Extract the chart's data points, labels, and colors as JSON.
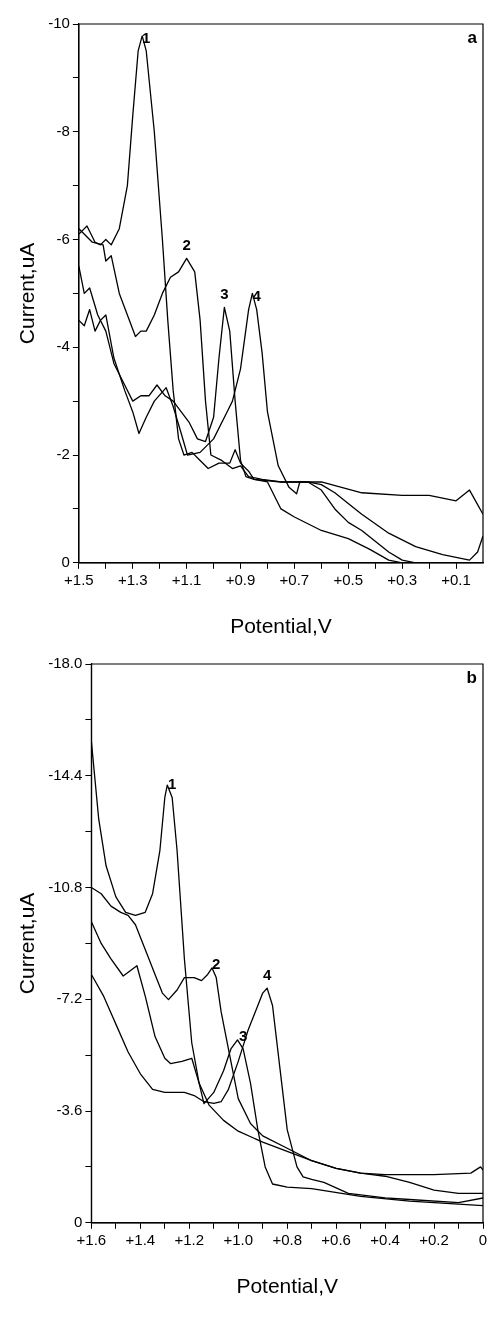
{
  "chart_data": [
    {
      "type": "line",
      "xlabel": "Potential,V",
      "ylabel": "Current,uA",
      "annotations": [
        "a"
      ],
      "xlim": [
        1.5,
        0
      ],
      "ylim": [
        0,
        -10
      ],
      "xticks": [
        {
          "value": 1.5,
          "label": "+1.5"
        },
        {
          "value": 1.4,
          "label": null
        },
        {
          "value": 1.3,
          "label": "+1.3"
        },
        {
          "value": 1.2,
          "label": null
        },
        {
          "value": 1.1,
          "label": "+1.1"
        },
        {
          "value": 1.0,
          "label": null
        },
        {
          "value": 0.9,
          "label": "+0.9"
        },
        {
          "value": 0.8,
          "label": null
        },
        {
          "value": 0.7,
          "label": "+0.7"
        },
        {
          "value": 0.6,
          "label": null
        },
        {
          "value": 0.5,
          "label": "+0.5"
        },
        {
          "value": 0.4,
          "label": null
        },
        {
          "value": 0.3,
          "label": "+0.3"
        },
        {
          "value": 0.2,
          "label": null
        },
        {
          "value": 0.1,
          "label": "+0.1"
        }
      ],
      "yticks": [
        -10,
        {
          "value": -9,
          "label": null
        },
        -8,
        {
          "value": -7,
          "label": null
        },
        -6,
        {
          "value": -5,
          "label": null
        },
        -4,
        {
          "value": -3,
          "label": null
        },
        -2,
        {
          "value": -1,
          "label": null
        },
        0
      ],
      "series": [
        {
          "name": "1",
          "color": "#000000",
          "x": [
            1.5,
            1.47,
            1.44,
            1.42,
            1.4,
            1.38,
            1.35,
            1.32,
            1.3,
            1.28,
            1.265,
            1.25,
            1.22,
            1.19,
            1.17,
            1.15,
            1.13,
            1.11,
            1.08,
            1.05,
            1.02,
            0.98,
            0.94,
            0.92,
            0.9,
            0.87,
            0.85,
            0.8,
            0.75,
            0.7,
            0.6,
            0.5,
            0.42,
            0.35,
            0.3,
            0.15,
            0
          ],
          "values": [
            -6.1,
            -6.25,
            -5.95,
            -5.9,
            -6.0,
            -5.9,
            -6.2,
            -7.0,
            -8.3,
            -9.5,
            -9.78,
            -9.5,
            -8.0,
            -6.0,
            -4.5,
            -3.2,
            -2.3,
            -2.0,
            -2.05,
            -1.9,
            -1.75,
            -1.85,
            -1.85,
            -2.1,
            -1.85,
            -1.7,
            -1.55,
            -1.5,
            -1.0,
            -0.85,
            -0.6,
            -0.45,
            -0.25,
            -0.05,
            0,
            0,
            0
          ]
        },
        {
          "name": "2",
          "color": "#000000",
          "x": [
            1.5,
            1.45,
            1.41,
            1.4,
            1.38,
            1.35,
            1.32,
            1.29,
            1.27,
            1.25,
            1.22,
            1.19,
            1.16,
            1.13,
            1.1,
            1.07,
            1.05,
            1.03,
            1.01,
            0.97,
            0.93,
            0.9,
            0.87,
            0.82,
            0.75,
            0.65,
            0.6,
            0.55,
            0.5,
            0.45,
            0.4,
            0.35,
            0.3,
            0.25,
            0
          ],
          "values": [
            -6.2,
            -5.95,
            -5.9,
            -5.6,
            -5.7,
            -5.0,
            -4.6,
            -4.2,
            -4.3,
            -4.3,
            -4.6,
            -5.0,
            -5.3,
            -5.4,
            -5.65,
            -5.4,
            -4.5,
            -3.0,
            -2.0,
            -1.9,
            -1.75,
            -1.8,
            -1.6,
            -1.55,
            -1.5,
            -1.5,
            -1.35,
            -1.0,
            -0.75,
            -0.6,
            -0.4,
            -0.2,
            -0.05,
            0,
            0
          ]
        },
        {
          "name": "3",
          "color": "#000000",
          "x": [
            1.5,
            1.48,
            1.46,
            1.43,
            1.4,
            1.37,
            1.33,
            1.3,
            1.27,
            1.24,
            1.21,
            1.18,
            1.15,
            1.12,
            1.09,
            1.06,
            1.03,
            1.0,
            0.98,
            0.96,
            0.94,
            0.92,
            0.9,
            0.88,
            0.85,
            0.75,
            0.65,
            0.6,
            0.55,
            0.45,
            0.35,
            0.25,
            0.15,
            0.05,
            0.02,
            0
          ],
          "values": [
            -5.5,
            -5.0,
            -5.1,
            -4.6,
            -4.3,
            -3.7,
            -3.3,
            -3.0,
            -3.1,
            -3.1,
            -3.3,
            -3.1,
            -3.0,
            -2.8,
            -2.6,
            -2.3,
            -2.25,
            -2.7,
            -3.8,
            -4.74,
            -4.3,
            -3.0,
            -1.9,
            -1.6,
            -1.55,
            -1.5,
            -1.5,
            -1.45,
            -1.3,
            -0.9,
            -0.55,
            -0.3,
            -0.15,
            -0.05,
            -0.2,
            -0.5
          ]
        },
        {
          "name": "4",
          "color": "#000000",
          "x": [
            1.5,
            1.48,
            1.46,
            1.44,
            1.42,
            1.4,
            1.37,
            1.33,
            1.3,
            1.277,
            1.25,
            1.22,
            1.176,
            1.15,
            1.12,
            1.097,
            1.05,
            1.0,
            0.95,
            0.93,
            0.9,
            0.87,
            0.856,
            0.84,
            0.82,
            0.8,
            0.76,
            0.72,
            0.692,
            0.68,
            0.6,
            0.45,
            0.3,
            0.2,
            0.1,
            0.05,
            0
          ],
          "values": [
            -4.5,
            -4.4,
            -4.7,
            -4.3,
            -4.5,
            -4.6,
            -3.8,
            -3.2,
            -2.8,
            -2.4,
            -2.7,
            -3.0,
            -3.25,
            -2.9,
            -2.4,
            -2.0,
            -2.05,
            -2.3,
            -2.8,
            -3.0,
            -3.6,
            -4.7,
            -5.0,
            -4.7,
            -3.9,
            -2.8,
            -1.8,
            -1.4,
            -1.28,
            -1.5,
            -1.5,
            -1.3,
            -1.25,
            -1.25,
            -1.15,
            -1.35,
            -0.9
          ]
        }
      ]
    },
    {
      "type": "line",
      "xlabel": "Potential,V",
      "ylabel": "Current,uA",
      "annotations": [
        "b"
      ],
      "xlim": [
        1.6,
        0
      ],
      "ylim": [
        0,
        -18
      ],
      "xticks": [
        {
          "value": 1.6,
          "label": "+1.6"
        },
        {
          "value": 1.5,
          "label": null
        },
        {
          "value": 1.4,
          "label": "+1.4"
        },
        {
          "value": 1.3,
          "label": null
        },
        {
          "value": 1.2,
          "label": "+1.2"
        },
        {
          "value": 1.1,
          "label": null
        },
        {
          "value": 1.0,
          "label": "+1.0"
        },
        {
          "value": 0.9,
          "label": null
        },
        {
          "value": 0.8,
          "label": "+0.8"
        },
        {
          "value": 0.7,
          "label": null
        },
        {
          "value": 0.6,
          "label": "+0.6"
        },
        {
          "value": 0.5,
          "label": null
        },
        {
          "value": 0.4,
          "label": "+0.4"
        },
        {
          "value": 0.3,
          "label": null
        },
        {
          "value": 0.2,
          "label": "+0.2"
        },
        {
          "value": 0.1,
          "label": null
        },
        0
      ],
      "yticks": [
        {
          "value": -18,
          "label": "-18.0"
        },
        {
          "value": -16.2,
          "label": null
        },
        -14.4,
        {
          "value": -12.6,
          "label": null
        },
        -10.8,
        {
          "value": -9,
          "label": null
        },
        -7.2,
        {
          "value": -5.4,
          "label": null
        },
        -3.6,
        {
          "value": -1.8,
          "label": null
        },
        0
      ],
      "series": [
        {
          "name": "1",
          "color": "#000000",
          "x": [
            1.6,
            1.57,
            1.54,
            1.5,
            1.46,
            1.42,
            1.38,
            1.35,
            1.32,
            1.3,
            1.29,
            1.27,
            1.25,
            1.22,
            1.19,
            1.16,
            1.12,
            1.06,
            1.0,
            0.9,
            0.8,
            0.7,
            0.6,
            0.5,
            0.4,
            0.3,
            0.2,
            0.1,
            0
          ],
          "values": [
            -15.5,
            -13.0,
            -11.5,
            -10.5,
            -10.0,
            -9.9,
            -10.0,
            -10.6,
            -12.0,
            -13.7,
            -14.1,
            -13.7,
            -12.0,
            -8.5,
            -5.8,
            -4.5,
            -3.8,
            -3.3,
            -2.95,
            -2.6,
            -2.3,
            -2.0,
            -1.75,
            -1.6,
            -1.5,
            -1.3,
            -1.05,
            -0.95,
            -0.95
          ]
        },
        {
          "name": "2",
          "color": "#000000",
          "x": [
            1.6,
            1.56,
            1.52,
            1.48,
            1.45,
            1.42,
            1.38,
            1.34,
            1.31,
            1.285,
            1.25,
            1.22,
            1.18,
            1.15,
            1.125,
            1.107,
            1.09,
            1.07,
            1.05,
            1.0,
            0.95,
            0.9,
            0.8,
            0.7,
            0.6,
            0.5,
            0.4,
            0.2,
            0.05,
            0.01,
            0
          ],
          "values": [
            -10.8,
            -10.6,
            -10.2,
            -10.0,
            -9.9,
            -9.6,
            -8.8,
            -8.0,
            -7.4,
            -7.19,
            -7.5,
            -7.9,
            -7.9,
            -7.8,
            -8.0,
            -8.21,
            -7.9,
            -6.8,
            -6.0,
            -4.0,
            -3.2,
            -2.8,
            -2.4,
            -2.0,
            -1.75,
            -1.6,
            -1.55,
            -1.55,
            -1.6,
            -1.8,
            -1.7
          ]
        },
        {
          "name": "3",
          "color": "#000000",
          "x": [
            1.6,
            1.56,
            1.52,
            1.47,
            1.414,
            1.38,
            1.34,
            1.3,
            1.277,
            1.23,
            1.19,
            1.16,
            1.14,
            1.1,
            1.06,
            1.03,
            1.003,
            0.98,
            0.95,
            0.92,
            0.89,
            0.86,
            0.8,
            0.7,
            0.5,
            0.3,
            0.1,
            0
          ],
          "values": [
            -9.7,
            -9.0,
            -8.5,
            -7.95,
            -8.28,
            -7.3,
            -6.0,
            -5.3,
            -5.13,
            -5.2,
            -5.3,
            -4.5,
            -3.84,
            -4.2,
            -4.9,
            -5.6,
            -5.89,
            -5.6,
            -4.5,
            -3.0,
            -1.8,
            -1.25,
            -1.15,
            -1.1,
            -0.85,
            -0.7,
            -0.6,
            -0.55
          ]
        },
        {
          "name": "4",
          "color": "#000000",
          "x": [
            1.6,
            1.55,
            1.5,
            1.45,
            1.4,
            1.35,
            1.3,
            1.25,
            1.22,
            1.18,
            1.14,
            1.1,
            1.07,
            1.04,
            1.0,
            0.96,
            0.92,
            0.9,
            0.882,
            0.86,
            0.83,
            0.8,
            0.76,
            0.735,
            0.7,
            0.65,
            0.55,
            0.4,
            0.3,
            0.1,
            0
          ],
          "values": [
            -8.0,
            -7.3,
            -6.4,
            -5.5,
            -4.8,
            -4.3,
            -4.2,
            -4.2,
            -4.2,
            -4.1,
            -3.9,
            -3.85,
            -3.9,
            -4.3,
            -5.2,
            -6.2,
            -7.0,
            -7.4,
            -7.56,
            -7.0,
            -5.0,
            -3.0,
            -1.8,
            -1.48,
            -1.4,
            -1.3,
            -0.95,
            -0.8,
            -0.75,
            -0.65,
            -0.8
          ]
        }
      ]
    }
  ]
}
